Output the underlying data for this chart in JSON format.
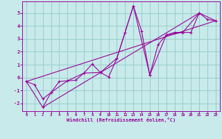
{
  "xlabel": "Windchill (Refroidissement éolien,°C)",
  "bg_color": "#c8eaea",
  "line_color": "#990099",
  "grid_color": "#99cccc",
  "xlim": [
    -0.5,
    23.5
  ],
  "ylim": [
    -2.6,
    5.9
  ],
  "yticks": [
    -2,
    -1,
    0,
    1,
    2,
    3,
    4,
    5
  ],
  "xticks": [
    0,
    1,
    2,
    3,
    4,
    5,
    6,
    7,
    8,
    9,
    10,
    11,
    12,
    13,
    14,
    15,
    16,
    17,
    18,
    19,
    20,
    21,
    22,
    23
  ],
  "series1": [
    [
      0,
      -0.3
    ],
    [
      1,
      -0.55
    ],
    [
      2,
      -1.65
    ],
    [
      3,
      -1.15
    ],
    [
      4,
      -0.3
    ],
    [
      5,
      -0.25
    ],
    [
      6,
      -0.2
    ],
    [
      7,
      0.35
    ],
    [
      8,
      1.05
    ],
    [
      9,
      0.4
    ],
    [
      10,
      0.05
    ],
    [
      11,
      1.5
    ],
    [
      12,
      3.5
    ],
    [
      13,
      5.55
    ],
    [
      14,
      3.6
    ],
    [
      15,
      0.2
    ],
    [
      16,
      2.55
    ],
    [
      17,
      3.3
    ],
    [
      18,
      3.5
    ],
    [
      19,
      3.5
    ],
    [
      20,
      3.5
    ],
    [
      21,
      5.0
    ],
    [
      22,
      4.5
    ],
    [
      23,
      4.4
    ]
  ],
  "series2": [
    [
      0,
      -0.3
    ],
    [
      2,
      -2.3
    ],
    [
      3,
      -1.15
    ],
    [
      5,
      -0.25
    ],
    [
      7,
      0.35
    ],
    [
      9,
      0.4
    ],
    [
      11,
      1.5
    ],
    [
      13,
      5.55
    ],
    [
      15,
      0.2
    ],
    [
      17,
      3.3
    ],
    [
      19,
      3.5
    ],
    [
      21,
      5.0
    ],
    [
      23,
      4.4
    ]
  ],
  "line3": [
    [
      0,
      -0.3
    ],
    [
      23,
      4.4
    ]
  ],
  "line4": [
    [
      2,
      -2.3
    ],
    [
      21,
      5.0
    ]
  ]
}
